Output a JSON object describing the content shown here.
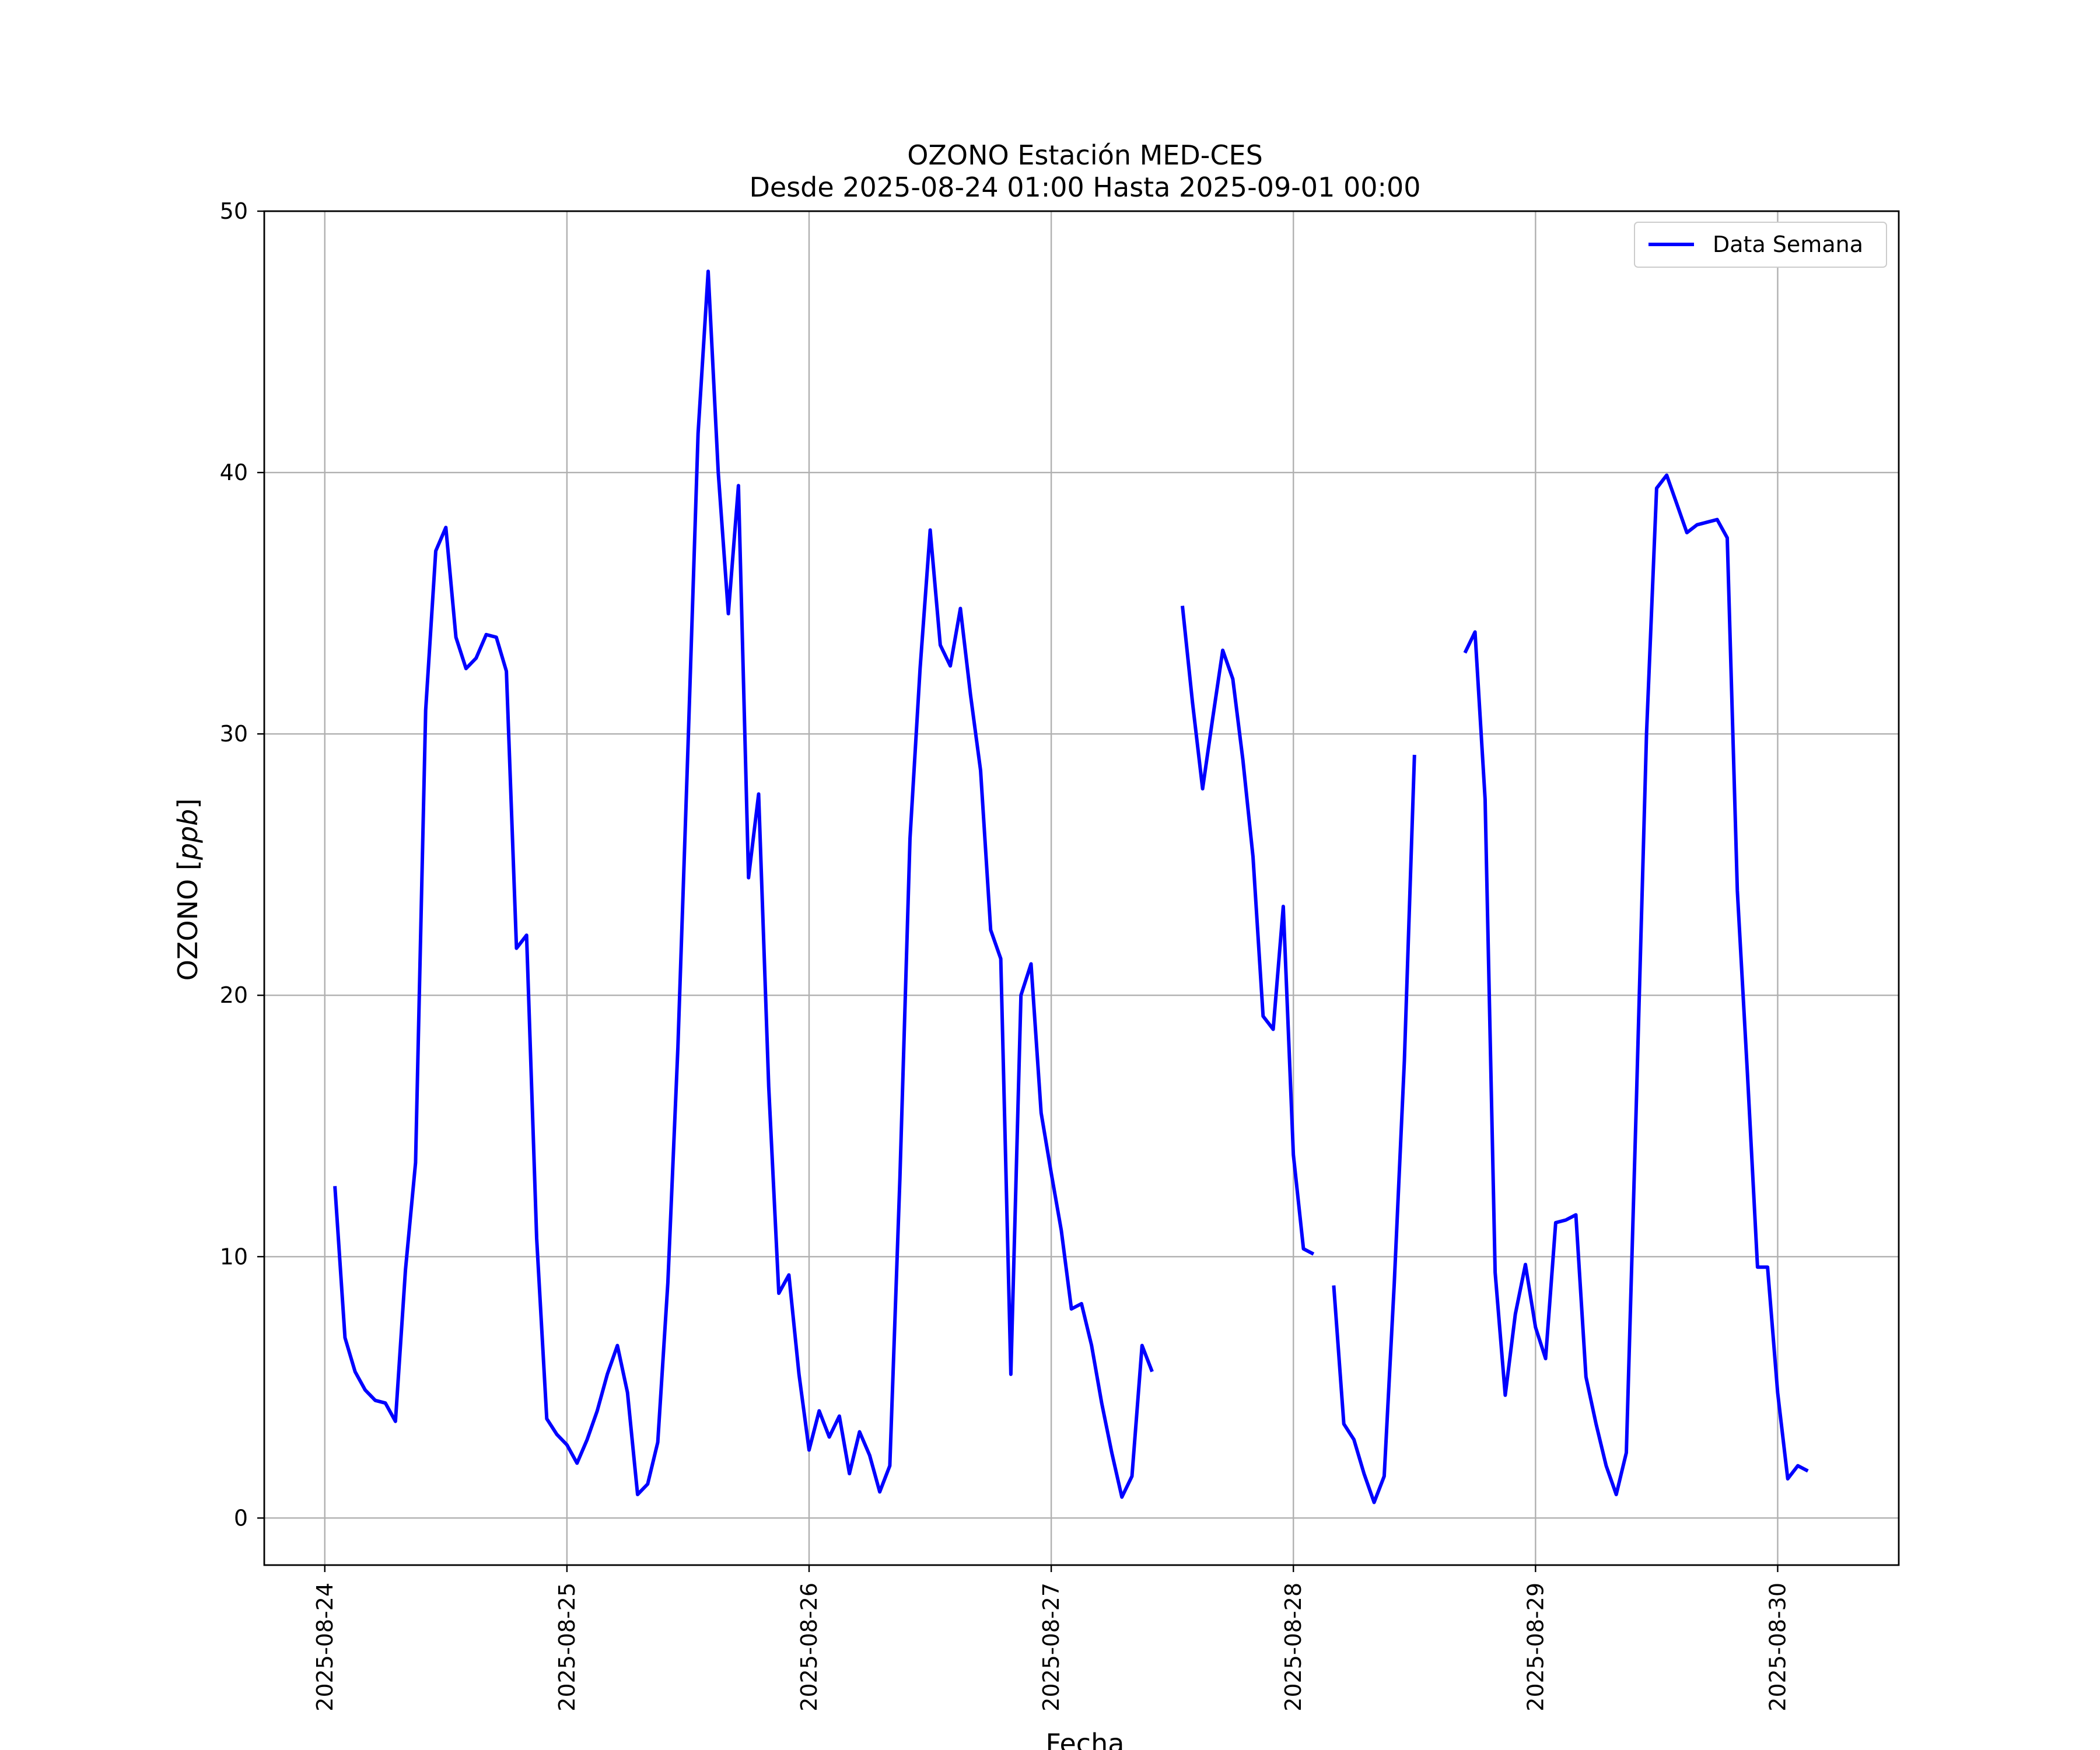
{
  "chart_data": {
    "type": "line",
    "title": "OZONO Estación MED-CES",
    "subtitle": "Desde 2025-08-24 01:00 Hasta 2025-09-01 00:00",
    "xlabel": "Fecha",
    "ylabel": "OZONO [ppb]",
    "ylabel_main": "OZONO",
    "ylabel_unit": "ppb",
    "xlim": [
      "2025-08-23 18:00",
      "2025-08-30 12:00"
    ],
    "ylim": [
      -1.8,
      50
    ],
    "yticks": [
      0,
      10,
      20,
      30,
      40,
      50
    ],
    "xticks": [
      "2025-08-24",
      "2025-08-25",
      "2025-08-26",
      "2025-08-27",
      "2025-08-28",
      "2025-08-29",
      "2025-08-30"
    ],
    "grid": true,
    "legend_position": "top-right",
    "series": [
      {
        "name": "Data Semana",
        "color": "#0000ff",
        "start": "2025-08-24 01:00",
        "interval_hours": 1,
        "values": [
          12.7,
          6.9,
          5.6,
          4.9,
          4.5,
          4.4,
          3.7,
          9.5,
          13.6,
          30.9,
          37.0,
          37.9,
          33.7,
          32.5,
          32.9,
          33.8,
          33.7,
          32.4,
          21.8,
          22.3,
          10.7,
          3.8,
          3.2,
          2.8,
          2.1,
          3.0,
          4.1,
          5.5,
          6.6,
          4.8,
          0.9,
          1.3,
          2.9,
          9.0,
          18.0,
          29.5,
          41.5,
          47.7,
          40.0,
          34.6,
          39.5,
          24.5,
          27.7,
          16.5,
          8.6,
          9.3,
          5.5,
          2.6,
          4.1,
          3.1,
          3.9,
          1.7,
          3.3,
          2.4,
          1.0,
          2.0,
          13.0,
          26.0,
          32.5,
          37.8,
          33.4,
          32.6,
          34.8,
          31.5,
          28.6,
          22.5,
          21.4,
          5.5,
          20.0,
          21.2,
          15.5,
          13.2,
          11.0,
          8.0,
          8.2,
          6.6,
          4.4,
          2.5,
          0.8,
          1.6,
          6.6,
          5.6,
          null,
          null,
          34.9,
          31.2,
          27.9,
          30.6,
          33.2,
          32.1,
          29.0,
          25.3,
          19.2,
          18.7,
          23.4,
          13.9,
          10.3,
          10.1,
          null,
          8.9,
          3.6,
          3.0,
          1.7,
          0.6,
          1.6,
          9.0,
          17.5,
          29.2,
          null,
          null,
          null,
          null,
          33.1,
          33.9,
          27.5,
          9.4,
          4.7,
          7.8,
          9.7,
          7.3,
          6.1,
          11.3,
          11.4,
          11.6,
          5.4,
          3.6,
          2.0,
          0.9,
          2.5,
          16.0,
          30.0,
          39.4,
          39.9,
          38.8,
          37.7,
          38.0,
          38.1,
          38.2,
          37.5,
          24.0,
          17.0,
          9.6,
          9.6,
          4.8,
          1.5,
          2.0,
          1.8
        ]
      }
    ]
  }
}
